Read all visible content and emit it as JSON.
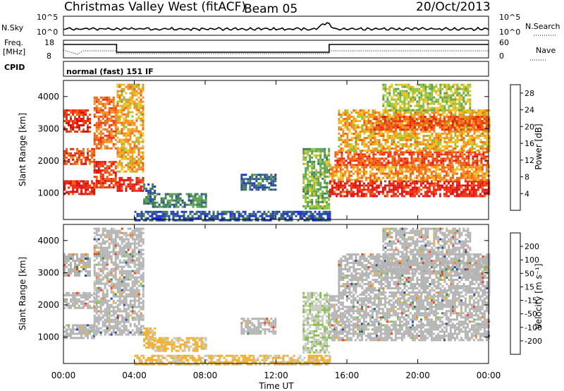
{
  "header": {
    "title": "Christmas Valley West (fitACF)",
    "beam": "Beam 05",
    "date": "20/Oct/2013"
  },
  "strips": {
    "nsky_label": "N.Sky",
    "nsky_ticks": [
      "10^5",
      "10^0"
    ],
    "nsearch_label": "N.Search",
    "nsearch_ticks": [
      "10^5",
      "10^0"
    ],
    "freq_label_1": "Freq.",
    "freq_label_2": "[MHz]",
    "freq_ticks": [
      "18",
      "8"
    ],
    "nave_label": "Nave",
    "nave_ticks": [
      "60",
      "0"
    ],
    "cpid_label": "CPID",
    "cpid_value": "normal (fast) 151 IF"
  },
  "colors": {
    "power": [
      "#1f2fd8",
      "#2a4a9c",
      "#3c7a5a",
      "#59a24e",
      "#8fc33a",
      "#f0c020",
      "#f09020",
      "#f06010",
      "#f03010",
      "#e01010"
    ],
    "velocity": [
      "#e01010",
      "#f04010",
      "#f08020",
      "#f0b030",
      "#c8c8c0",
      "#c8c8c0",
      "#80c040",
      "#3c8a4a",
      "#2a4a9c",
      "#1f2fd8"
    ],
    "ground_scatter": "#b4b4b4"
  },
  "chart_data": [
    {
      "type": "heatmap",
      "panel": "power",
      "xlabel": "",
      "ylabel": "Slant Range [km]",
      "x_ticks": [
        "00:00",
        "04:00",
        "08:00",
        "12:00",
        "16:00",
        "20:00",
        "00:00"
      ],
      "x_range_hours": [
        0,
        24
      ],
      "y_ticks": [
        1000,
        2000,
        3000,
        4000
      ],
      "ylim_km": [
        180,
        4500
      ],
      "colorbar_label": "Power [dB]",
      "colorbar_ticks": [
        4,
        8,
        12,
        16,
        20,
        24,
        28
      ],
      "colorbar_range": [
        0,
        30
      ],
      "bands": [
        {
          "t": [
            0.0,
            1.7
          ],
          "range_km": [
            1000,
            1400
          ],
          "power_db": 27
        },
        {
          "t": [
            0.0,
            1.7
          ],
          "range_km": [
            1900,
            2400
          ],
          "power_db": 24
        },
        {
          "t": [
            0.0,
            1.5
          ],
          "range_km": [
            2900,
            3600
          ],
          "power_db": 25
        },
        {
          "t": [
            1.7,
            3.0
          ],
          "range_km": [
            1200,
            2000
          ],
          "power_db": 25
        },
        {
          "t": [
            1.7,
            3.0
          ],
          "range_km": [
            2400,
            4000
          ],
          "power_db": 22
        },
        {
          "t": [
            3.0,
            4.5
          ],
          "range_km": [
            1100,
            1500
          ],
          "power_db": 26
        },
        {
          "t": [
            3.0,
            4.5
          ],
          "range_km": [
            1700,
            4400
          ],
          "power_db": 18
        },
        {
          "t": [
            4.5,
            5.2
          ],
          "range_km": [
            700,
            1300
          ],
          "power_db": 6
        },
        {
          "t": [
            5.0,
            8.0
          ],
          "range_km": [
            600,
            1000
          ],
          "power_db": 8
        },
        {
          "t": [
            10.0,
            12.0
          ],
          "range_km": [
            1100,
            1600
          ],
          "power_db": 6
        },
        {
          "t": [
            4.0,
            15.0
          ],
          "range_km": [
            180,
            450
          ],
          "power_db": 5
        },
        {
          "t": [
            13.5,
            15.0
          ],
          "range_km": [
            500,
            2400
          ],
          "power_db": 12
        },
        {
          "t": [
            15.0,
            24.0
          ],
          "range_km": [
            900,
            1400
          ],
          "power_db": 27
        },
        {
          "t": [
            15.0,
            24.0
          ],
          "range_km": [
            1400,
            1900
          ],
          "power_db": 20
        },
        {
          "t": [
            15.3,
            24.0
          ],
          "range_km": [
            1900,
            2300
          ],
          "power_db": 24
        },
        {
          "t": [
            15.5,
            24.0
          ],
          "range_km": [
            2300,
            3600
          ],
          "power_db": 18
        },
        {
          "t": [
            17.5,
            24.0
          ],
          "range_km": [
            3000,
            3400
          ],
          "power_db": 24
        },
        {
          "t": [
            18.0,
            23.0
          ],
          "range_km": [
            3600,
            4400
          ],
          "power_db": 14
        }
      ]
    },
    {
      "type": "heatmap",
      "panel": "velocity",
      "xlabel": "Time UT",
      "ylabel": "Slant Range [km]",
      "x_ticks": [
        "00:00",
        "04:00",
        "08:00",
        "12:00",
        "16:00",
        "20:00",
        "00:00"
      ],
      "x_range_hours": [
        0,
        24
      ],
      "y_ticks": [
        1000,
        2000,
        3000,
        4000
      ],
      "ylim_km": [
        180,
        4500
      ],
      "colorbar_label": "Velocity [m s⁻¹]",
      "colorbar_ticks": [
        200,
        100,
        50,
        15,
        -15,
        -50,
        -100,
        -200
      ],
      "colorbar_range": [
        -250,
        250
      ],
      "bands": [
        {
          "t": [
            0.0,
            1.7
          ],
          "range_km": [
            1000,
            1400
          ],
          "velocity": 0,
          "ground": true
        },
        {
          "t": [
            0.0,
            1.7
          ],
          "range_km": [
            1900,
            2400
          ],
          "velocity": 0,
          "ground": true
        },
        {
          "t": [
            0.0,
            1.5
          ],
          "range_km": [
            2900,
            3600
          ],
          "velocity": 0,
          "ground": true
        },
        {
          "t": [
            1.7,
            4.5
          ],
          "range_km": [
            1100,
            4400
          ],
          "velocity": 0,
          "ground": true
        },
        {
          "t": [
            4.5,
            5.2
          ],
          "range_km": [
            700,
            1300
          ],
          "velocity": -60
        },
        {
          "t": [
            5.0,
            8.0
          ],
          "range_km": [
            600,
            1000
          ],
          "velocity": -60
        },
        {
          "t": [
            4.0,
            15.0
          ],
          "range_km": [
            180,
            450
          ],
          "velocity": -60
        },
        {
          "t": [
            10.0,
            12.0
          ],
          "range_km": [
            1100,
            1600
          ],
          "velocity": 0,
          "ground": true
        },
        {
          "t": [
            13.5,
            15.0
          ],
          "range_km": [
            500,
            2400
          ],
          "velocity": 40
        },
        {
          "t": [
            15.0,
            24.0
          ],
          "range_km": [
            900,
            1400
          ],
          "velocity": 0,
          "ground": true
        },
        {
          "t": [
            15.0,
            24.0
          ],
          "range_km": [
            1400,
            2300
          ],
          "velocity": 0,
          "ground": true
        },
        {
          "t": [
            15.5,
            24.0
          ],
          "range_km": [
            2300,
            3600
          ],
          "velocity": 0,
          "ground": true
        },
        {
          "t": [
            17.5,
            24.0
          ],
          "range_km": [
            3000,
            3400
          ],
          "velocity": 0,
          "ground": true
        },
        {
          "t": [
            18.0,
            23.0
          ],
          "range_km": [
            3600,
            4400
          ],
          "velocity": 0,
          "ground": true
        }
      ]
    }
  ]
}
